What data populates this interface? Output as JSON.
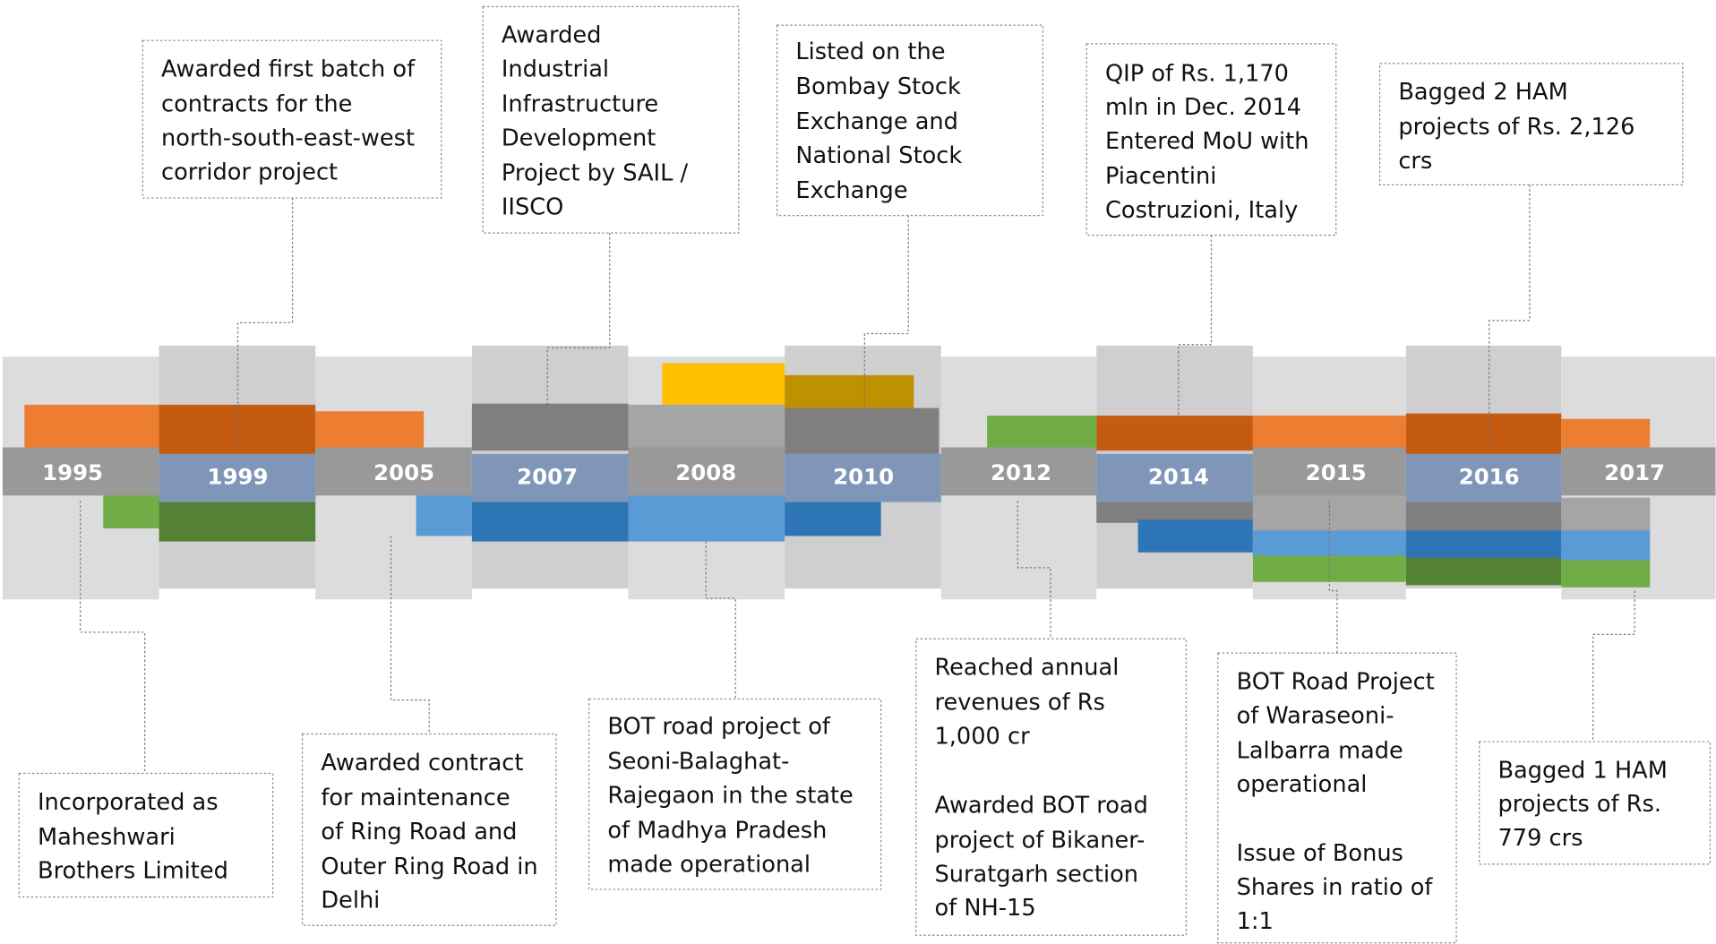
{
  "milestones": [
    {
      "year": "1995",
      "paragraphs": [
        [
          "Incorporated as",
          "Maheshwari",
          "Brothers Limited"
        ]
      ]
    },
    {
      "year": "1999",
      "paragraphs": [
        [
          "Awarded first batch of",
          "contracts for the",
          "north-south-east-west",
          "corridor project"
        ]
      ]
    },
    {
      "year": "2005",
      "paragraphs": [
        [
          "Awarded contract",
          "for maintenance",
          "of Ring Road and",
          "Outer Ring Road in",
          "Delhi"
        ]
      ]
    },
    {
      "year": "2007",
      "paragraphs": [
        [
          "Awarded",
          "Industrial",
          "Infrastructure",
          "Development",
          "Project by SAIL /",
          "IISCO"
        ]
      ]
    },
    {
      "year": "2008",
      "paragraphs": [
        [
          "BOT road project of",
          "Seoni-Balaghat-",
          "Rajegaon in the state",
          "of Madhya Pradesh",
          "made operational"
        ]
      ]
    },
    {
      "year": "2010",
      "paragraphs": [
        [
          "Listed on the",
          "Bombay Stock",
          "Exchange and",
          "National Stock",
          "Exchange"
        ]
      ]
    },
    {
      "year": "2012",
      "paragraphs": [
        [
          "Reached annual",
          "revenues of Rs",
          "1,000 cr"
        ],
        [
          "Awarded BOT road",
          "project of Bikaner-",
          "Suratgarh section",
          "of NH-15"
        ]
      ]
    },
    {
      "year": "2014",
      "paragraphs": [
        [
          "QIP of Rs. 1,170",
          "mln in Dec. 2014",
          "Entered MoU with",
          "Piacentini",
          "Costruzioni, Italy"
        ]
      ]
    },
    {
      "year": "2015",
      "paragraphs": [
        [
          "BOT Road Project",
          "of Waraseoni-",
          "Lalbarra made",
          "operational"
        ],
        [
          "Issue of Bonus",
          "Shares in ratio of",
          "1:1"
        ]
      ]
    },
    {
      "year": "2016",
      "paragraphs": [
        [
          "Bagged 2 HAM",
          "projects of Rs. 2,126",
          "crs"
        ]
      ]
    },
    {
      "year": "2017",
      "paragraphs": [
        [
          "Bagged 1 HAM",
          "projects of Rs.",
          "779 crs"
        ]
      ]
    }
  ]
}
